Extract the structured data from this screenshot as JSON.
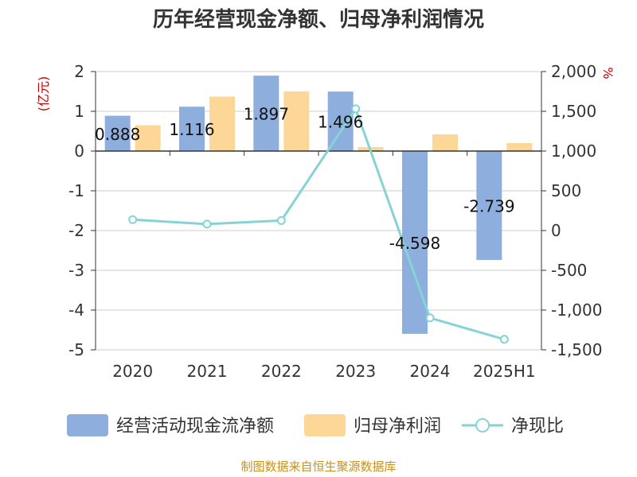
{
  "chart_data": {
    "type": "bar",
    "title": "历年经营现金净额、归母净利润情况",
    "categories": [
      "2020",
      "2021",
      "2022",
      "2023",
      "2024",
      "2025H1"
    ],
    "left_axis": {
      "unit": "(亿元)",
      "ylim": [
        -5,
        2
      ],
      "ticks": [
        "2",
        "1",
        "0",
        "-1",
        "-2",
        "-3",
        "-4",
        "-5"
      ]
    },
    "right_axis": {
      "unit": "%",
      "ylim": [
        -1500,
        2000
      ],
      "ticks": [
        "2,000",
        "1,500",
        "1,000",
        "500",
        "0",
        "-500",
        "-1,000",
        "-1,500"
      ]
    },
    "series": [
      {
        "name": "经营活动现金流净额",
        "axis": "left",
        "kind": "bar",
        "color": "#8eaedd",
        "values": [
          0.888,
          1.116,
          1.897,
          1.496,
          -4.598,
          -2.739
        ],
        "labels": [
          "0.888",
          "1.116",
          "1.897",
          "1.496",
          "-4.598",
          "-2.739"
        ]
      },
      {
        "name": "归母净利润",
        "axis": "left",
        "kind": "bar",
        "color": "#fdd797",
        "values": [
          0.65,
          1.37,
          1.5,
          0.1,
          0.42,
          0.2
        ]
      },
      {
        "name": "净现比",
        "axis": "right",
        "kind": "line",
        "color": "#86d3d6",
        "values": [
          137,
          81,
          126,
          1531,
          -1099,
          -1368
        ]
      }
    ],
    "grid": true,
    "legend": "bottom"
  },
  "footer": {
    "source": "制图数据来自恒生聚源数据库"
  }
}
